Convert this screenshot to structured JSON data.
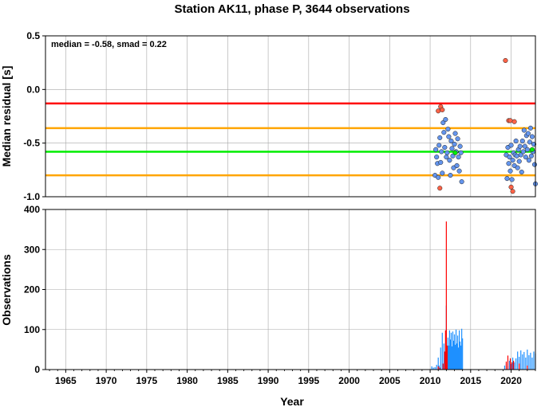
{
  "chart_data": [
    {
      "type": "scatter",
      "title": "Station AK11, phase P, 3644 observations",
      "ylabel": "Median residual [s]",
      "annotation": "median = -0.58, smad = 0.22",
      "xlim": [
        1962.5,
        2023.0
      ],
      "ylim": [
        -1.0,
        0.5
      ],
      "y_ticks": [
        0.5,
        0.0,
        -0.5,
        -1.0
      ],
      "y_tick_labels": [
        "0.5",
        "0.0",
        "-0.5",
        "-1.0"
      ],
      "grid": true,
      "reference_lines": [
        {
          "y": -0.13,
          "color": "#ff0000"
        },
        {
          "y": -0.36,
          "color": "#ffa500"
        },
        {
          "y": -0.58,
          "color": "#00ee00"
        },
        {
          "y": -0.8,
          "color": "#ffa500"
        }
      ],
      "series": [
        {
          "color": "#6495ed",
          "points": [
            [
              2010.6,
              -0.8
            ],
            [
              2010.7,
              -0.56
            ],
            [
              2010.8,
              -0.63
            ],
            [
              2010.9,
              -0.69
            ],
            [
              2011.0,
              -0.82
            ],
            [
              2011.1,
              -0.52
            ],
            [
              2011.2,
              -0.45
            ],
            [
              2011.3,
              -0.68
            ],
            [
              2011.4,
              -0.58
            ],
            [
              2011.5,
              -0.78
            ],
            [
              2011.6,
              -0.31
            ],
            [
              2011.7,
              -0.4
            ],
            [
              2011.8,
              -0.54
            ],
            [
              2011.9,
              -0.28
            ],
            [
              2012.0,
              -0.63
            ],
            [
              2012.1,
              -0.59
            ],
            [
              2012.2,
              -0.37
            ],
            [
              2012.3,
              -0.44
            ],
            [
              2012.4,
              -0.66
            ],
            [
              2012.5,
              -0.8
            ],
            [
              2012.6,
              -0.48
            ],
            [
              2012.7,
              -0.55
            ],
            [
              2012.8,
              -0.62
            ],
            [
              2012.9,
              -0.73
            ],
            [
              2013.0,
              -0.51
            ],
            [
              2013.1,
              -0.41
            ],
            [
              2013.2,
              -0.58
            ],
            [
              2013.3,
              -0.71
            ],
            [
              2013.4,
              -0.46
            ],
            [
              2013.5,
              -0.63
            ],
            [
              2013.6,
              -0.76
            ],
            [
              2013.7,
              -0.53
            ],
            [
              2013.8,
              -0.59
            ],
            [
              2013.9,
              -0.86
            ],
            [
              2019.4,
              -0.61
            ],
            [
              2019.5,
              -0.83
            ],
            [
              2019.6,
              -0.54
            ],
            [
              2019.7,
              -0.69
            ],
            [
              2019.8,
              -0.63
            ],
            [
              2019.9,
              -0.76
            ],
            [
              2020.0,
              -0.52
            ],
            [
              2020.1,
              -0.84
            ],
            [
              2020.2,
              -0.66
            ],
            [
              2020.3,
              -0.59
            ],
            [
              2020.4,
              -0.71
            ],
            [
              2020.5,
              -0.61
            ],
            [
              2020.6,
              -0.48
            ],
            [
              2020.7,
              -0.62
            ],
            [
              2020.8,
              -0.73
            ],
            [
              2020.9,
              -0.56
            ],
            [
              2021.0,
              -0.67
            ],
            [
              2021.1,
              -0.53
            ],
            [
              2021.2,
              -0.61
            ],
            [
              2021.3,
              -0.77
            ],
            [
              2021.4,
              -0.48
            ],
            [
              2021.5,
              -0.58
            ],
            [
              2021.6,
              -0.38
            ],
            [
              2021.7,
              -0.53
            ],
            [
              2021.8,
              -0.63
            ],
            [
              2021.9,
              -0.43
            ],
            [
              2022.0,
              -0.56
            ],
            [
              2022.1,
              -0.41
            ],
            [
              2022.2,
              -0.66
            ],
            [
              2022.3,
              -0.49
            ],
            [
              2022.4,
              -0.36
            ],
            [
              2022.5,
              -0.62
            ],
            [
              2022.6,
              -0.44
            ],
            [
              2022.7,
              -0.58
            ],
            [
              2022.8,
              -0.51
            ],
            [
              2022.9,
              -0.7
            ],
            [
              2023.0,
              -0.88
            ]
          ]
        },
        {
          "color": "#ff6347",
          "points": [
            [
              2011.0,
              -0.2
            ],
            [
              2011.3,
              -0.16
            ],
            [
              2011.5,
              -0.19
            ],
            [
              2011.2,
              -0.92
            ],
            [
              2019.3,
              0.27
            ],
            [
              2019.7,
              -0.29
            ],
            [
              2019.9,
              -0.29
            ],
            [
              2020.0,
              -0.91
            ],
            [
              2020.2,
              -0.95
            ],
            [
              2020.4,
              -0.3
            ]
          ]
        },
        {
          "color": "#00ee00",
          "points": [
            [
              2013.1,
              -0.59
            ],
            [
              2022.6,
              -0.56
            ]
          ]
        }
      ]
    },
    {
      "type": "bar",
      "ylabel": "Observations",
      "xlabel": "Year",
      "xlim": [
        1962.5,
        2023.0
      ],
      "ylim": [
        0,
        400
      ],
      "x_ticks": [
        1965,
        1970,
        1975,
        1980,
        1985,
        1990,
        1995,
        2000,
        2005,
        2010,
        2015,
        2020
      ],
      "x_tick_labels": [
        "1965",
        "1970",
        "1975",
        "1980",
        "1985",
        "1990",
        "1995",
        "2000",
        "2005",
        "2010",
        "2015",
        "2020"
      ],
      "y_ticks": [
        0,
        100,
        200,
        300,
        400
      ],
      "y_tick_labels": [
        "0",
        "100",
        "200",
        "300",
        "400"
      ],
      "grid": true,
      "series": [
        {
          "color": "#1e90ff",
          "bars": [
            [
              2010.2,
              8
            ],
            [
              2010.4,
              5
            ],
            [
              2010.6,
              6
            ],
            [
              2010.8,
              12
            ],
            [
              2011.0,
              30
            ],
            [
              2011.1,
              10
            ],
            [
              2011.3,
              55
            ],
            [
              2011.5,
              92
            ],
            [
              2011.7,
              65
            ],
            [
              2011.8,
              30
            ],
            [
              2012.0,
              160
            ],
            [
              2012.2,
              80
            ],
            [
              2012.3,
              60
            ],
            [
              2012.4,
              98
            ],
            [
              2012.5,
              75
            ],
            [
              2012.6,
              92
            ],
            [
              2012.7,
              58
            ],
            [
              2012.8,
              95
            ],
            [
              2012.9,
              72
            ],
            [
              2013.0,
              88
            ],
            [
              2013.1,
              62
            ],
            [
              2013.2,
              100
            ],
            [
              2013.3,
              65
            ],
            [
              2013.4,
              85
            ],
            [
              2013.5,
              55
            ],
            [
              2013.6,
              98
            ],
            [
              2013.7,
              70
            ],
            [
              2013.8,
              60
            ],
            [
              2013.9,
              102
            ],
            [
              2014.0,
              78
            ],
            [
              2019.2,
              10
            ],
            [
              2019.4,
              15
            ],
            [
              2019.6,
              8
            ],
            [
              2019.8,
              22
            ],
            [
              2020.0,
              14
            ],
            [
              2020.2,
              30
            ],
            [
              2020.4,
              18
            ],
            [
              2020.6,
              28
            ],
            [
              2020.8,
              45
            ],
            [
              2021.0,
              32
            ],
            [
              2021.2,
              48
            ],
            [
              2021.4,
              38
            ],
            [
              2021.6,
              44
            ],
            [
              2021.8,
              30
            ],
            [
              2022.0,
              50
            ],
            [
              2022.2,
              36
            ],
            [
              2022.4,
              42
            ],
            [
              2022.6,
              30
            ],
            [
              2022.8,
              45
            ],
            [
              2023.0,
              40
            ]
          ]
        },
        {
          "color": "#ff0000",
          "bars": [
            [
              2011.0,
              8
            ],
            [
              2011.2,
              5
            ],
            [
              2011.6,
              15
            ],
            [
              2011.8,
              45
            ],
            [
              2011.9,
              98
            ],
            [
              2012.0,
              370
            ],
            [
              2012.1,
              60
            ],
            [
              2019.4,
              20
            ],
            [
              2019.6,
              35
            ],
            [
              2019.9,
              28
            ],
            [
              2020.1,
              18
            ],
            [
              2020.3,
              22
            ],
            [
              2021.0,
              15
            ],
            [
              2022.0,
              10
            ]
          ]
        }
      ]
    }
  ]
}
